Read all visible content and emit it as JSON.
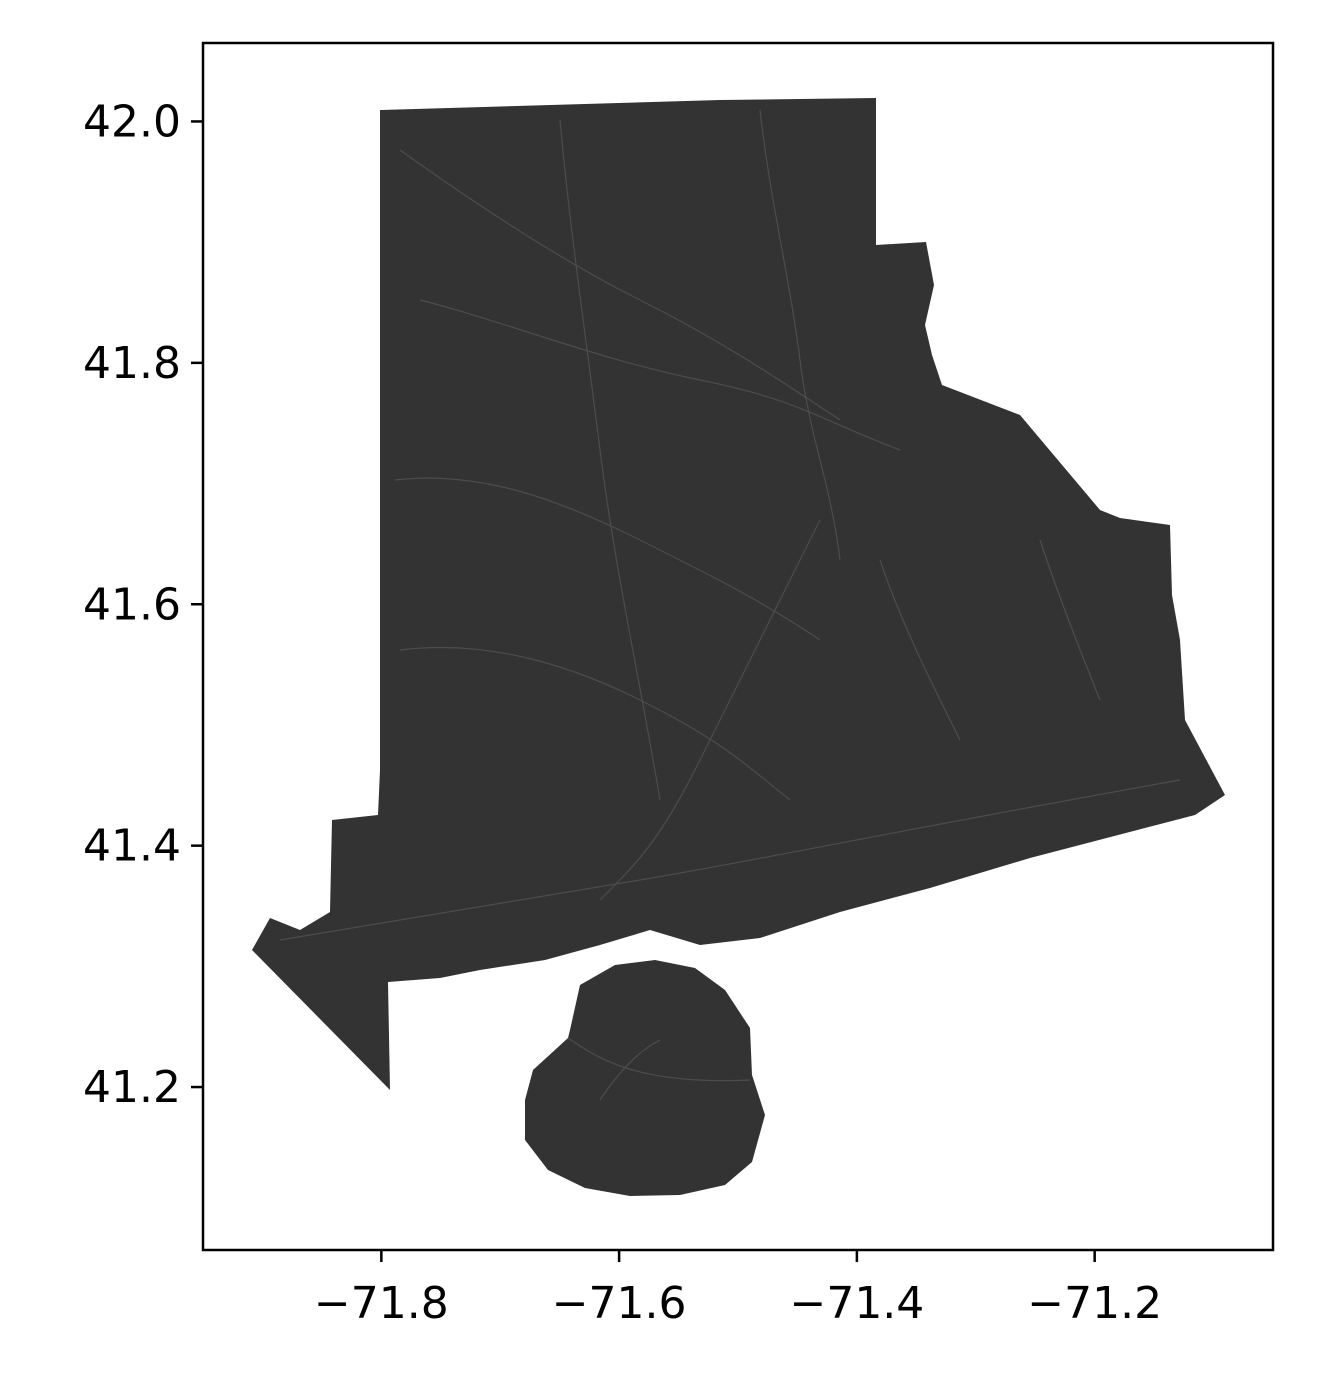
{
  "map": {
    "title": "",
    "xlabel": "",
    "ylabel": "",
    "fill_color": "#333333",
    "line_color": "#555555",
    "frame_color": "#000000",
    "xlim": [
      -71.95,
      -71.05
    ],
    "ylim": [
      41.065,
      42.065
    ],
    "x_ticks": [
      {
        "value": -71.8,
        "label": "−71.8"
      },
      {
        "value": -71.6,
        "label": "−71.6"
      },
      {
        "value": -71.4,
        "label": "−71.4"
      },
      {
        "value": -71.2,
        "label": "−71.2"
      }
    ],
    "y_ticks": [
      {
        "value": 42.0,
        "label": "42.0"
      },
      {
        "value": 41.8,
        "label": "41.8"
      },
      {
        "value": 41.6,
        "label": "41.6"
      },
      {
        "value": 41.4,
        "label": "41.4"
      },
      {
        "value": 41.2,
        "label": "41.2"
      }
    ],
    "grid": false,
    "legend": "none"
  }
}
